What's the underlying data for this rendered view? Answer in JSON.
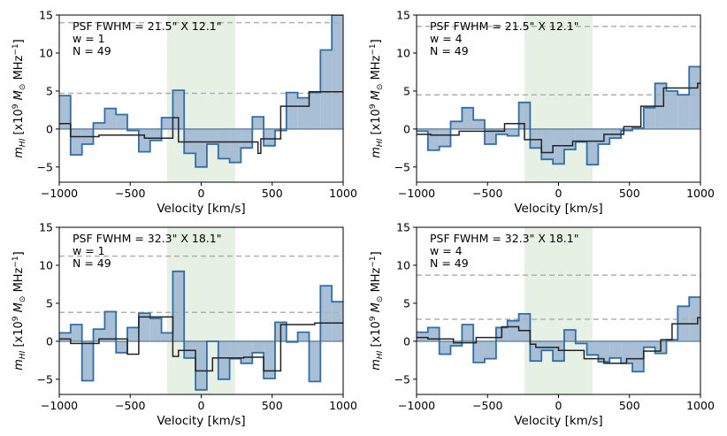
{
  "chart_data": [
    {
      "type": "step",
      "xlabel": "Velocity [km/s]",
      "ylabel": "m_HI [x10^9 M_sun MHz^-1]",
      "xlim": [
        -1000,
        1000
      ],
      "ylim": [
        -7,
        15
      ],
      "xticks": [
        "−1000",
        "−500",
        "0",
        "500",
        "1000"
      ],
      "yticks": [
        "−5",
        "0",
        "5",
        "10",
        "15"
      ],
      "annotation": [
        "PSF FWHM = 21.5\" X 12.1\"",
        "w = 1",
        "N = 49"
      ],
      "highlight_band": [
        -240,
        240
      ],
      "dashed_lines": [
        14.0,
        4.7
      ],
      "bin_edges": [
        -1000,
        -920,
        -840,
        -760,
        -680,
        -600,
        -520,
        -440,
        -360,
        -280,
        -200,
        -120,
        -40,
        40,
        120,
        200,
        280,
        360,
        440,
        520,
        600,
        680,
        760,
        840,
        920,
        1000
      ],
      "values": [
        4.4,
        -3.4,
        -2.0,
        0.8,
        2.7,
        1.9,
        -0.2,
        -3.0,
        -1.5,
        1.5,
        5.1,
        -3.2,
        -5.0,
        -2.0,
        -3.9,
        -4.4,
        -2.5,
        1.6,
        -2.2,
        -0.2,
        4.8,
        4.1,
        4.8,
        10.4,
        15.0
      ],
      "model_edges": [
        -1000,
        -920,
        -720,
        -400,
        -200,
        -160,
        400,
        420,
        560,
        760,
        1000
      ],
      "model_values": [
        0.7,
        -1.0,
        -0.8,
        -1.2,
        1.5,
        -1.7,
        -3.2,
        -1.3,
        3.0,
        4.9
      ]
    },
    {
      "type": "step",
      "xlabel": "Velocity [km/s]",
      "ylabel": "m_HI [x10^9 M_sun MHz^-1]",
      "xlim": [
        -1000,
        1000
      ],
      "ylim": [
        -7,
        15
      ],
      "xticks": [
        "−1000",
        "−500",
        "0",
        "500",
        "1000"
      ],
      "yticks": [
        "−5",
        "0",
        "5",
        "10",
        "15"
      ],
      "annotation": [
        "PSF FWHM = 21.5\" X 12.1\"",
        "w = 4",
        "N = 49"
      ],
      "highlight_band": [
        -240,
        240
      ],
      "dashed_lines": [
        13.5,
        4.5
      ],
      "bin_edges": [
        -1000,
        -920,
        -840,
        -760,
        -680,
        -600,
        -520,
        -440,
        -360,
        -280,
        -200,
        -120,
        -40,
        40,
        120,
        200,
        280,
        360,
        440,
        520,
        600,
        680,
        760,
        840,
        920,
        1000
      ],
      "values": [
        -0.3,
        -2.8,
        -2.3,
        1.0,
        2.8,
        1.2,
        -2.0,
        -0.7,
        -0.9,
        3.5,
        -2.5,
        -4.0,
        -4.6,
        -2.7,
        -1.7,
        -4.7,
        -2.0,
        -1.2,
        -0.2,
        0.1,
        2.8,
        6.0,
        5.0,
        4.5,
        8.2
      ],
      "model_edges": [
        -1000,
        -900,
        -700,
        -380,
        -240,
        -120,
        -40,
        100,
        320,
        460,
        580,
        740,
        980,
        1000
      ],
      "model_values": [
        -0.7,
        -0.8,
        -0.3,
        0.7,
        -1.4,
        -3.1,
        -2.2,
        -1.6,
        -0.7,
        0.3,
        3.0,
        5.4,
        6.0
      ]
    },
    {
      "type": "step",
      "xlabel": "Velocity [km/s]",
      "ylabel": "m_HI [x10^9 M_sun MHz^-1]",
      "xlim": [
        -1000,
        1000
      ],
      "ylim": [
        -7,
        15
      ],
      "xticks": [
        "−1000",
        "−500",
        "0",
        "500",
        "1000"
      ],
      "yticks": [
        "−5",
        "0",
        "5",
        "10",
        "15"
      ],
      "annotation": [
        "PSF FWHM = 32.3\" X 18.1\"",
        "w = 1",
        "N = 49"
      ],
      "highlight_band": [
        -240,
        240
      ],
      "dashed_lines": [
        11.2,
        3.8
      ],
      "bin_edges": [
        -1000,
        -920,
        -840,
        -760,
        -680,
        -600,
        -520,
        -440,
        -360,
        -280,
        -200,
        -120,
        -40,
        40,
        120,
        200,
        280,
        360,
        440,
        520,
        600,
        680,
        760,
        840,
        920,
        1000
      ],
      "values": [
        1.1,
        2.2,
        -5.2,
        1.6,
        3.9,
        -1.5,
        1.8,
        3.7,
        3.0,
        1.1,
        9.2,
        -2.2,
        -6.4,
        0.0,
        -5.0,
        -2.3,
        -2.9,
        -1.5,
        -4.9,
        2.5,
        -0.1,
        1.2,
        -5.3,
        7.3,
        5.2
      ],
      "model_edges": [
        -1000,
        -920,
        -720,
        -520,
        -440,
        -200,
        -160,
        -40,
        80,
        300,
        440,
        560,
        800,
        1000
      ],
      "model_values": [
        0.3,
        -0.3,
        0.3,
        -1.7,
        3.2,
        -2.0,
        -1.2,
        -3.9,
        -2.2,
        -2.1,
        -3.9,
        2.2,
        2.4
      ]
    },
    {
      "type": "step",
      "xlabel": "Velocity [km/s]",
      "ylabel": "m_HI [x10^9 M_sun MHz^-1]",
      "xlim": [
        -1000,
        1000
      ],
      "ylim": [
        -7,
        15
      ],
      "xticks": [
        "−1000",
        "−500",
        "0",
        "500",
        "1000"
      ],
      "yticks": [
        "−5",
        "0",
        "5",
        "10",
        "15"
      ],
      "annotation": [
        "PSF FWHM = 32.3\" X 18.1\"",
        "w = 4",
        "N = 49"
      ],
      "highlight_band": [
        -240,
        240
      ],
      "dashed_lines": [
        8.7,
        2.9
      ],
      "bin_edges": [
        -1000,
        -920,
        -840,
        -760,
        -680,
        -600,
        -520,
        -440,
        -360,
        -280,
        -200,
        -120,
        -40,
        40,
        120,
        200,
        280,
        360,
        440,
        520,
        600,
        680,
        760,
        840,
        920,
        1000
      ],
      "values": [
        1.2,
        1.8,
        -1.7,
        -0.6,
        2.2,
        -2.8,
        -2.3,
        1.8,
        2.7,
        3.6,
        -2.6,
        -1.2,
        -2.6,
        1.5,
        -0.3,
        -1.8,
        -2.7,
        -2.2,
        -2.9,
        -4.0,
        -0.8,
        -1.6,
        0.2,
        4.6,
        5.8
      ],
      "model_edges": [
        -1000,
        -920,
        -740,
        -580,
        -400,
        -280,
        -200,
        -160,
        0,
        180,
        320,
        480,
        600,
        720,
        800,
        980,
        1000
      ],
      "model_values": [
        0.5,
        0.3,
        -0.2,
        0.5,
        1.9,
        1.4,
        -0.4,
        -0.8,
        -1.2,
        -2.3,
        -2.9,
        -2.3,
        -1.3,
        0.2,
        2.3,
        3.1
      ]
    }
  ]
}
